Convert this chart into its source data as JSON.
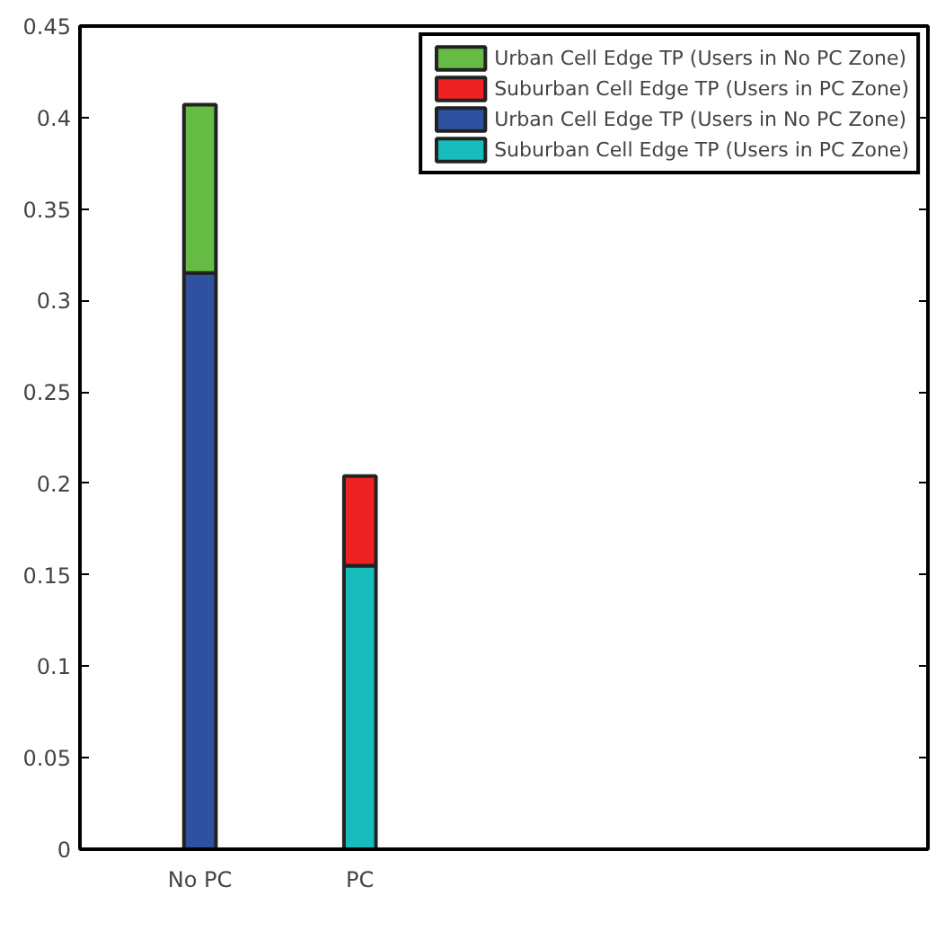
{
  "chart_data": {
    "type": "bar",
    "stacked": true,
    "categories": [
      "No PC",
      "PC"
    ],
    "series": [
      {
        "name": "Urban Cell Edge TP (Users in No PC Zone)",
        "color": "#3050a0",
        "values": [
          0.315,
          null
        ]
      },
      {
        "name": "Suburban Cell Edge TP (Users in PC Zone)",
        "color": "#18bcbc",
        "values": [
          null,
          0.155
        ]
      },
      {
        "name": "Urban Cell Edge TP (Users in No PC Zone)",
        "color": "#66bb44",
        "values": [
          0.092,
          null
        ]
      },
      {
        "name": "Suburban Cell Edge TP (Users in PC Zone)",
        "color": "#ee2222",
        "values": [
          null,
          0.049
        ]
      }
    ],
    "ylim": [
      0,
      0.45
    ],
    "yticks": [
      0,
      0.05,
      0.1,
      0.15,
      0.2,
      0.25,
      0.3,
      0.35,
      0.4,
      0.45
    ],
    "grid": false,
    "legend": "top right"
  }
}
